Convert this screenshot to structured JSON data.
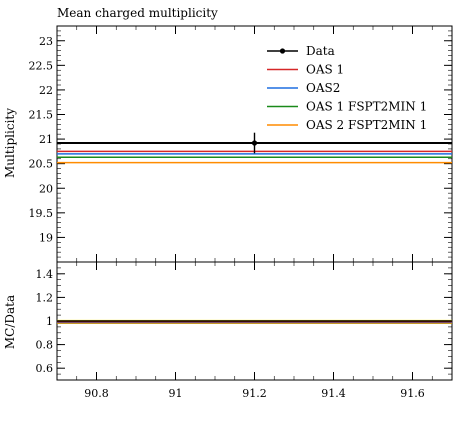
{
  "chart_data": [
    {
      "type": "line",
      "title": "Mean charged multiplicity",
      "xlabel": "",
      "ylabel": "Multiplicity",
      "xlim": [
        90.7,
        91.7
      ],
      "ylim": [
        18.5,
        23.3
      ],
      "yticks": [
        19,
        19.5,
        20,
        20.5,
        21,
        21.5,
        22,
        22.5,
        23
      ],
      "yticklabels": [
        "19",
        "19.5",
        "20",
        "20.5",
        "21",
        "21.5",
        "22",
        "22.5",
        "23"
      ],
      "legend_position": "top-right",
      "data_point": {
        "name": "Data",
        "x": 91.2,
        "y": 20.92,
        "yerr": 0.21,
        "color": "#000000"
      },
      "series": [
        {
          "name": "Data",
          "y": 20.92,
          "color": "#000000"
        },
        {
          "name": "OAS 1",
          "y": 20.75,
          "color": "#d62728"
        },
        {
          "name": "OAS2",
          "y": 20.7,
          "color": "#1f6fe0"
        },
        {
          "name": "OAS 1 FSPT2MIN 1",
          "y": 20.63,
          "color": "#1a8a1a"
        },
        {
          "name": "OAS 2 FSPT2MIN 1",
          "y": 20.52,
          "color": "#ff8c00"
        }
      ]
    },
    {
      "type": "line",
      "title": "",
      "xlabel": "",
      "ylabel": "MC/Data",
      "xlim": [
        90.7,
        91.7
      ],
      "ylim": [
        0.5,
        1.5
      ],
      "xticks": [
        90.8,
        91,
        91.2,
        91.4,
        91.6
      ],
      "xticklabels": [
        "90.8",
        "91",
        "91.2",
        "91.4",
        "91.6"
      ],
      "yticks": [
        0.6,
        0.8,
        1,
        1.2,
        1.4
      ],
      "yticklabels": [
        "0.6",
        "0.8",
        "1",
        "1.2",
        "1.4"
      ],
      "band": {
        "low": 0.99,
        "high": 1.01,
        "color": "#ffee33"
      },
      "series": [
        {
          "name": "Data",
          "y": 1.0,
          "color": "#000000"
        },
        {
          "name": "OAS 1",
          "y": 0.992,
          "color": "#d62728"
        },
        {
          "name": "OAS2",
          "y": 0.989,
          "color": "#1f6fe0"
        },
        {
          "name": "OAS 1 FSPT2MIN 1",
          "y": 0.986,
          "color": "#1a8a1a"
        },
        {
          "name": "OAS 2 FSPT2MIN 1",
          "y": 0.981,
          "color": "#ff8c00"
        }
      ]
    }
  ]
}
